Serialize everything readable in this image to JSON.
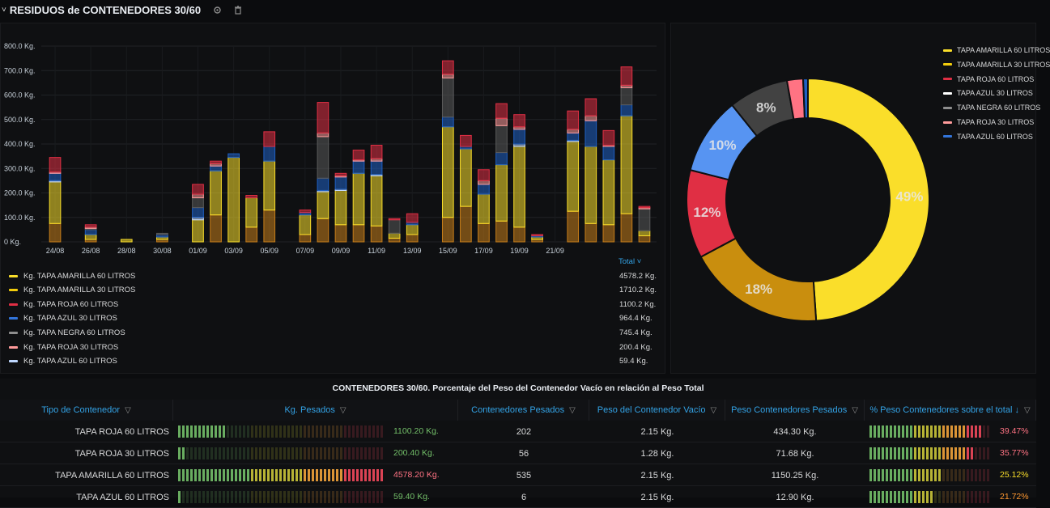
{
  "header": {
    "title": "RESIDUOS de CONTENEDORES 30/60",
    "settings_icon": "gear-icon",
    "delete_icon": "trash-icon"
  },
  "bar_chart": {
    "total_label": "Total ˅"
  },
  "chart_data": [
    {
      "type": "bar",
      "stacked": true,
      "x_tick_labels": [
        "24/08",
        "26/08",
        "28/08",
        "30/08",
        "01/09",
        "03/09",
        "05/09",
        "07/09",
        "09/09",
        "11/09",
        "13/09",
        "15/09",
        "17/09",
        "19/09",
        "21/09"
      ],
      "y_tick_labels": [
        "0 Kg.",
        "100.0 Kg.",
        "200.0 Kg.",
        "300.0 Kg.",
        "400.0 Kg.",
        "500.0 Kg.",
        "600.0 Kg.",
        "700.0 Kg.",
        "800.0 Kg."
      ],
      "ylim": [
        0,
        800
      ],
      "grid": true,
      "series_order": [
        "TAPA AMARILLA 30 LITROS",
        "TAPA AMARILLA 60 LITROS",
        "TAPA AZUL 60 LITROS",
        "TAPA AZUL 30 LITROS",
        "TAPA NEGRA 60 LITROS",
        "TAPA ROJA 30 LITROS",
        "TAPA ROJA 60 LITROS"
      ],
      "series_colors": [
        "#c67d19",
        "#fade2a",
        "#c0d8ff",
        "#1f60c4",
        "#5a5a5a",
        "#ff9b9b",
        "#e02f44"
      ],
      "bars": [
        {
          "offset": 0,
          "values": [
            75,
            170,
            5,
            30,
            0,
            5,
            60
          ]
        },
        {
          "offset": 2,
          "values": [
            10,
            20,
            0,
            20,
            5,
            5,
            10
          ]
        },
        {
          "offset": 4,
          "values": [
            0,
            10,
            0,
            0,
            0,
            0,
            0
          ]
        },
        {
          "offset": 6,
          "values": [
            10,
            10,
            0,
            10,
            5,
            0,
            0
          ]
        },
        {
          "offset": 8,
          "values": [
            0,
            90,
            10,
            40,
            40,
            15,
            40
          ]
        },
        {
          "offset": 9,
          "values": [
            110,
            180,
            0,
            20,
            0,
            10,
            10
          ]
        },
        {
          "offset": 10,
          "values": [
            0,
            345,
            0,
            15,
            0,
            0,
            0
          ]
        },
        {
          "offset": 11,
          "values": [
            60,
            120,
            0,
            0,
            0,
            0,
            10
          ]
        },
        {
          "offset": 12,
          "values": [
            130,
            200,
            0,
            60,
            0,
            0,
            60
          ]
        },
        {
          "offset": 14,
          "values": [
            30,
            80,
            0,
            10,
            0,
            0,
            10
          ]
        },
        {
          "offset": 15,
          "values": [
            95,
            110,
            5,
            50,
            170,
            15,
            125
          ]
        },
        {
          "offset": 16,
          "values": [
            70,
            140,
            5,
            50,
            0,
            5,
            10
          ]
        },
        {
          "offset": 17,
          "values": [
            70,
            210,
            0,
            50,
            0,
            5,
            40
          ]
        },
        {
          "offset": 18,
          "values": [
            65,
            205,
            5,
            55,
            0,
            10,
            55
          ]
        },
        {
          "offset": 19,
          "values": [
            15,
            20,
            0,
            0,
            55,
            0,
            5
          ]
        },
        {
          "offset": 20,
          "values": [
            30,
            40,
            0,
            10,
            0,
            0,
            35
          ]
        },
        {
          "offset": 22,
          "values": [
            100,
            370,
            0,
            40,
            160,
            15,
            55
          ]
        },
        {
          "offset": 23,
          "values": [
            145,
            235,
            0,
            10,
            0,
            0,
            45
          ]
        },
        {
          "offset": 24,
          "values": [
            75,
            120,
            0,
            40,
            0,
            15,
            45
          ]
        },
        {
          "offset": 25,
          "values": [
            85,
            230,
            0,
            50,
            110,
            30,
            60
          ]
        },
        {
          "offset": 26,
          "values": [
            60,
            330,
            10,
            60,
            0,
            10,
            50
          ]
        },
        {
          "offset": 27,
          "values": [
            10,
            10,
            0,
            5,
            0,
            0,
            5
          ]
        },
        {
          "offset": 29,
          "values": [
            125,
            285,
            5,
            30,
            0,
            15,
            75
          ]
        },
        {
          "offset": 30,
          "values": [
            75,
            315,
            0,
            105,
            0,
            20,
            70
          ]
        },
        {
          "offset": 31,
          "values": [
            70,
            265,
            0,
            55,
            0,
            5,
            60
          ]
        },
        {
          "offset": 32,
          "values": [
            115,
            400,
            0,
            45,
            70,
            10,
            75
          ]
        },
        {
          "offset": 33,
          "values": [
            25,
            20,
            0,
            0,
            90,
            5,
            5
          ]
        }
      ]
    },
    {
      "type": "pie",
      "donut": true,
      "slice_labels": [
        "49%",
        "18%",
        "12%",
        "10%",
        "8%"
      ],
      "slices": [
        {
          "name": "TAPA AMARILLA 60 LITROS",
          "value": 4578.2,
          "color": "#fade2a"
        },
        {
          "name": "TAPA AMARILLA 30 LITROS",
          "value": 1710.2,
          "color": "#c98e0e"
        },
        {
          "name": "TAPA ROJA 60 LITROS",
          "value": 1100.2,
          "color": "#e02f44"
        },
        {
          "name": "TAPA AZUL 30 LITROS",
          "value": 964.4,
          "color": "#5794f2"
        },
        {
          "name": "TAPA NEGRA 60 LITROS",
          "value": 745.4,
          "color": "#424242"
        },
        {
          "name": "TAPA ROJA 30 LITROS",
          "value": 200.4,
          "color": "#ff7383"
        },
        {
          "name": "TAPA AZUL 60 LITROS",
          "value": 59.4,
          "color": "#1f60c4"
        }
      ]
    }
  ],
  "bar_legend": [
    {
      "label": "Kg. TAPA AMARILLA 60 LITROS",
      "total": "4578.2 Kg.",
      "color": "#fade2a"
    },
    {
      "label": "Kg. TAPA AMARILLA 30 LITROS",
      "total": "1710.2 Kg.",
      "color": "#f2cc0c"
    },
    {
      "label": "Kg. TAPA ROJA 60 LITROS",
      "total": "1100.2 Kg.",
      "color": "#e02f44"
    },
    {
      "label": "Kg. TAPA AZUL 30 LITROS",
      "total": "964.4 Kg.",
      "color": "#3274d9"
    },
    {
      "label": "Kg. TAPA NEGRA 60 LITROS",
      "total": "745.4 Kg.",
      "color": "#8e8e8e"
    },
    {
      "label": "Kg. TAPA ROJA 30 LITROS",
      "total": "200.4 Kg.",
      "color": "#ff9b9b"
    },
    {
      "label": "Kg. TAPA AZUL 60 LITROS",
      "total": "59.4 Kg.",
      "color": "#c0d8ff"
    }
  ],
  "pie_legend": [
    {
      "label": "TAPA AMARILLA 60 LITROS",
      "color": "#fade2a"
    },
    {
      "label": "TAPA AMARILLA 30 LITROS",
      "color": "#f2cc0c"
    },
    {
      "label": "TAPA ROJA 60 LITROS",
      "color": "#e02f44"
    },
    {
      "label": "TAPA AZUL 30 LITROS",
      "color": "#ffffff"
    },
    {
      "label": "TAPA NEGRA 60 LITROS",
      "color": "#8e8e8e"
    },
    {
      "label": "TAPA ROJA 30 LITROS",
      "color": "#ff9b9b"
    },
    {
      "label": "TAPA AZUL 60 LITROS",
      "color": "#3274d9"
    }
  ],
  "table": {
    "title": "CONTENEDORES 30/60. Porcentaje del Peso del Contenedor Vacío en relación al Peso Total",
    "columns": [
      "Tipo de Contenedor",
      "Kg. Pesados",
      "Contenedores Pesados",
      "Peso del Contenedor Vacío",
      "Peso Contenedores Pesados",
      "% Peso Contenedores sobre el total ↓"
    ],
    "rows": [
      {
        "tipo": "TAPA ROJA 60 LITROS",
        "kg": "1100.20 Kg.",
        "kg_fraction": 0.24,
        "kg_color": "#73bf69",
        "pesados": "202",
        "vacio": "2.15 Kg.",
        "peso_pesados": "434.30 Kg.",
        "pct": "39.47%",
        "pct_fraction": 0.394,
        "pct_color": "#ff7383"
      },
      {
        "tipo": "TAPA ROJA 30 LITROS",
        "kg": "200.40 Kg.",
        "kg_fraction": 0.044,
        "kg_color": "#73bf69",
        "pesados": "56",
        "vacio": "1.28 Kg.",
        "peso_pesados": "71.68 Kg.",
        "pct": "35.77%",
        "pct_fraction": 0.358,
        "pct_color": "#ff7383"
      },
      {
        "tipo": "TAPA AMARILLA 60 LITROS",
        "kg": "4578.20 Kg.",
        "kg_fraction": 1.0,
        "kg_color": "#ff7383",
        "pesados": "535",
        "vacio": "2.15 Kg.",
        "peso_pesados": "1150.25 Kg.",
        "pct": "25.12%",
        "pct_fraction": 0.251,
        "pct_color": "#fade2a"
      },
      {
        "tipo": "TAPA AZUL 60 LITROS",
        "kg": "59.40 Kg.",
        "kg_fraction": 0.013,
        "kg_color": "#73bf69",
        "pesados": "6",
        "vacio": "2.15 Kg.",
        "peso_pesados": "12.90 Kg.",
        "pct": "21.72%",
        "pct_fraction": 0.217,
        "pct_color": "#ff9830"
      }
    ]
  }
}
